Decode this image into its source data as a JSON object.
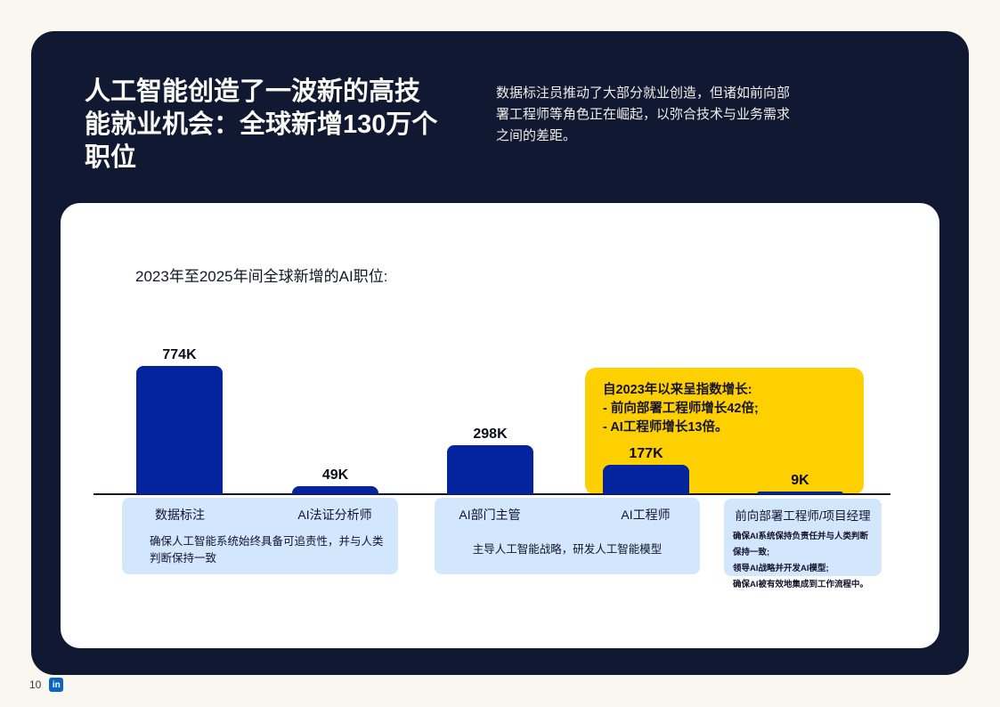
{
  "hero": {
    "title": "人工智能创造了一波新的高技能就业机会：全球新增130万个职位",
    "title_lines": [
      "人工智能创造了一波新的高技",
      "能就业机会：全球新增130万个",
      "职位"
    ],
    "description_lines": [
      "数据标注员推动了大部分就业创造，但诸如前向部",
      "署工程师等角色正在崛起，以弥合技术与业务需求",
      "之间的差距。"
    ]
  },
  "chart_data": {
    "type": "bar",
    "title": "2023年至2025年间全球新增的AI职位:",
    "categories": [
      "数据标注",
      "AI法证分析师",
      "AI部门主管",
      "AI工程师",
      "前向部署工程师/项目经理"
    ],
    "values": [
      774000,
      49000,
      298000,
      177000,
      9000
    ],
    "value_labels": [
      "774K",
      "49K",
      "298K",
      "177K",
      "9K"
    ],
    "ylim": [
      0,
      800000
    ],
    "grid": false,
    "bar_color": "#03249C",
    "annotation": {
      "bg": "#FFD000",
      "lines": [
        "自2023年以来呈指数增长:",
        "- 前向部署工程师增长42倍;",
        "- AI工程师增长13倍。"
      ]
    },
    "groups": [
      {
        "titles": [
          "数据标注",
          "AI法证分析师"
        ],
        "description": "确保人工智能系统始终具备可追责性，并与人类判断保持一致"
      },
      {
        "titles": [
          "AI部门主管",
          "AI工程师"
        ],
        "description": "主导人工智能战略，研发人工智能模型"
      },
      {
        "title": "前向部署工程师/项目经理",
        "descriptions": [
          "确保AI系统保持负责任并与人类判断保持一致;",
          "领导AI战略并开发AI模型;",
          "确保AI被有效地集成到工作流程中。"
        ]
      }
    ]
  },
  "colors": {
    "page_background": "#FAF7F0",
    "hero_card": "#111831",
    "bar": "#03249C",
    "callout": "#FFD000",
    "group_box": "#D2E7FC",
    "linkedin": "#0A66C2"
  },
  "footer": {
    "page_number": "10",
    "linkedin_glyph": "in"
  }
}
